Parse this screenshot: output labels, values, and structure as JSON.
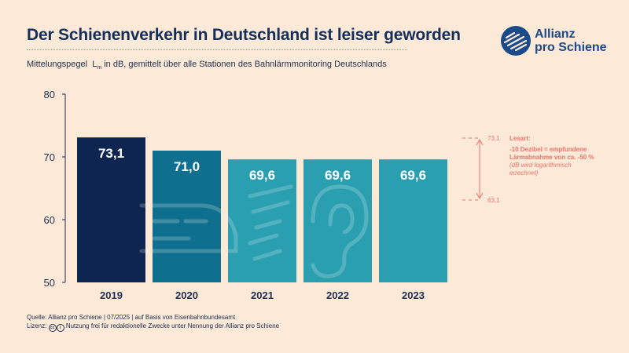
{
  "header": {
    "title": "Der Schienenverkehr in Deutschland ist leiser geworden",
    "subtitle_pre": "Mittelungspegel",
    "subtitle_symbol": "L",
    "subtitle_subscript": "m",
    "subtitle_post": "in dB, gemittelt über alle Stationen des Bahnlärmmonitoring Deutschlands"
  },
  "logo": {
    "line1": "Allianz",
    "line2": "pro Schiene"
  },
  "chart_data": {
    "type": "bar",
    "categories": [
      "2019",
      "2020",
      "2021",
      "2022",
      "2023"
    ],
    "values": [
      73.1,
      71.0,
      69.6,
      69.6,
      69.6
    ],
    "value_labels": [
      "73,1",
      "71,0",
      "69,6",
      "69,6",
      "69,6"
    ],
    "ylim": [
      50,
      80
    ],
    "yticks": [
      50,
      60,
      70,
      80
    ],
    "ytick_labels": [
      "50",
      "60",
      "70",
      "80"
    ],
    "bar_colors": [
      "#0d2550",
      "#0f6f8e",
      "#2a9fb0",
      "#2a9fb0",
      "#2a9fb0"
    ],
    "annotation": {
      "top_label": "73,1",
      "bottom_label": "63,1",
      "top_value": 73.1,
      "bottom_value": 63.1,
      "heading": "Lesart:",
      "line1": "-10 Dezibel = empfundene",
      "line2": "Lärmabnahme von ca. -50 %",
      "note1": "(dB wird logarithmisch",
      "note2": "errechnet)",
      "color": "#e8746a"
    }
  },
  "footer": {
    "source": "Quelle: Allianz pro Schiene | 07/2025 | auf Basis von Eisenbahnbundesamt",
    "license_label": "Lizenz:",
    "license_text": "Nutzung frei für redaktionelle Zwecke unter Nennung der Allianz pro Schiene"
  }
}
